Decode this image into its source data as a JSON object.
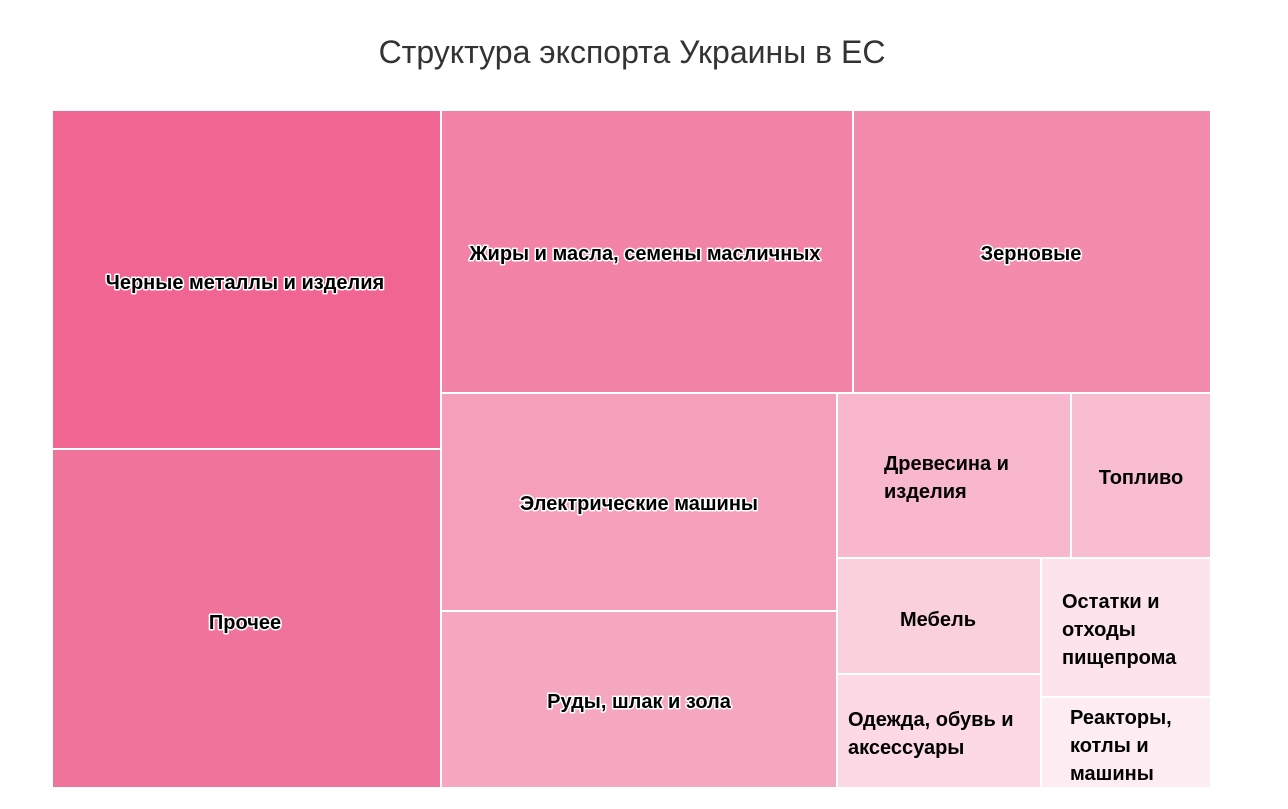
{
  "chart_data": {
    "type": "treemap",
    "title": "Структура экспорта Украины в ЕС",
    "base_color": "#ec407a",
    "items": [
      {
        "label": "Черные металлы и изделия",
        "label_lines": [
          "Черные металлы и изделия"
        ],
        "color": "#f06592"
      },
      {
        "label": "Прочее",
        "label_lines": [
          "Прочее"
        ],
        "color": "#f0739c"
      },
      {
        "label": "Жиры и масла, семены масличных",
        "label_lines": [
          "Жиры и масла, семены масличных"
        ],
        "color": "#f283a6"
      },
      {
        "label": "Зерновые",
        "label_lines": [
          "Зерновые"
        ],
        "color": "#f38cac"
      },
      {
        "label": "Электрические машины",
        "label_lines": [
          "Электрические машины"
        ],
        "color": "#f59fba"
      },
      {
        "label": "Руды, шлак и зола",
        "label_lines": [
          "Руды, шлак и зола"
        ],
        "color": "#f6a7c0"
      },
      {
        "label": "Древесина и изделия",
        "label_lines": [
          "Древесина и",
          "изделия"
        ],
        "color": "#f8b7cc"
      },
      {
        "label": "Топливо",
        "label_lines": [
          "Топливо"
        ],
        "color": "#f8bdd0"
      },
      {
        "label": "Мебель",
        "label_lines": [
          "Мебель"
        ],
        "color": "#fad0dd"
      },
      {
        "label": "Остатки и отходы пищепрома",
        "label_lines": [
          "Остатки и",
          "отходы",
          "пищепрома"
        ],
        "color": "#fde3eb"
      },
      {
        "label": "Одежда, обувь и аксессуары",
        "label_lines": [
          "Одежда, обувь и",
          "аксессуары"
        ],
        "color": "#fcd9e4"
      },
      {
        "label": "Реакторы, котлы и машины",
        "label_lines": [
          "Реакторы,",
          "котлы и",
          "машины"
        ],
        "color": "#fdedf2"
      }
    ]
  }
}
